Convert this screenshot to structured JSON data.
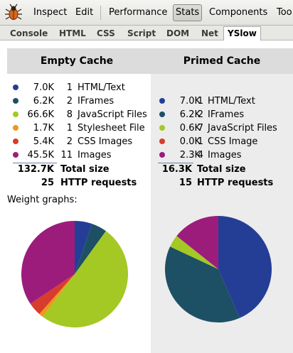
{
  "menubar": {
    "items": [
      {
        "label": "Inspect",
        "active": false
      },
      {
        "label": "Edit",
        "active": false
      },
      {
        "label": "Performance",
        "active": false
      },
      {
        "label": "Stats",
        "active": true
      },
      {
        "label": "Components",
        "active": false
      },
      {
        "label": "Too",
        "active": false
      }
    ],
    "icon": "firebug-icon"
  },
  "tabbar": {
    "tabs": [
      {
        "label": "Console",
        "active": false
      },
      {
        "label": "HTML",
        "active": false
      },
      {
        "label": "CSS",
        "active": false
      },
      {
        "label": "Script",
        "active": false
      },
      {
        "label": "DOM",
        "active": false
      },
      {
        "label": "Net",
        "active": false
      },
      {
        "label": "YSlow",
        "active": true
      }
    ]
  },
  "stats": {
    "empty": {
      "title": "Empty Cache",
      "rows": [
        {
          "size": "7.0K",
          "count": "1",
          "label": "HTML/Text",
          "color": "#243e96"
        },
        {
          "size": "6.2K",
          "count": "2",
          "label": "IFrames",
          "color": "#1d5064"
        },
        {
          "size": "66.6K",
          "count": "8",
          "label": "JavaScript Files",
          "color": "#a4c824"
        },
        {
          "size": "1.7K",
          "count": "1",
          "label": "Stylesheet File",
          "color": "#f0961c"
        },
        {
          "size": "5.4K",
          "count": "2",
          "label": "CSS Images",
          "color": "#d83c2c"
        },
        {
          "size": "45.5K",
          "count": "11",
          "label": "Images",
          "color": "#9c1c7c"
        }
      ],
      "total_size": "132.7K",
      "total_size_label": "Total size",
      "requests": "25",
      "requests_label": "HTTP requests"
    },
    "primed": {
      "title": "Primed Cache",
      "rows": [
        {
          "size": "7.0K",
          "count": "1",
          "label": "HTML/Text",
          "color": "#243e96"
        },
        {
          "size": "6.2K",
          "count": "2",
          "label": "IFrames",
          "color": "#1d5064"
        },
        {
          "size": "0.6K",
          "count": "7",
          "label": "JavaScript Files",
          "color": "#a4c824"
        },
        {
          "size": "0.0K",
          "count": "1",
          "label": "CSS Image",
          "color": "#d83c2c"
        },
        {
          "size": "2.3K",
          "count": "4",
          "label": "Images",
          "color": "#9c1c7c"
        }
      ],
      "total_size": "16.3K",
      "total_size_label": "Total size",
      "requests": "15",
      "requests_label": "HTTP requests"
    }
  },
  "weight_graphs_label": "Weight graphs:",
  "chart_data": [
    {
      "type": "pie",
      "title": "",
      "categories": [
        "HTML/Text",
        "IFrames",
        "JavaScript Files",
        "Stylesheet File",
        "CSS Images",
        "Images"
      ],
      "values": [
        7.0,
        6.2,
        66.6,
        1.7,
        5.4,
        45.5
      ],
      "colors": [
        "#243e96",
        "#1d5064",
        "#a4c824",
        "#f0961c",
        "#d83c2c",
        "#9c1c7c"
      ]
    },
    {
      "type": "pie",
      "title": "",
      "categories": [
        "HTML/Text",
        "IFrames",
        "JavaScript Files",
        "CSS Image",
        "Images"
      ],
      "values": [
        7.0,
        6.2,
        0.6,
        0.0,
        2.3
      ],
      "colors": [
        "#243e96",
        "#1d5064",
        "#a4c824",
        "#d83c2c",
        "#9c1c7c"
      ]
    }
  ]
}
